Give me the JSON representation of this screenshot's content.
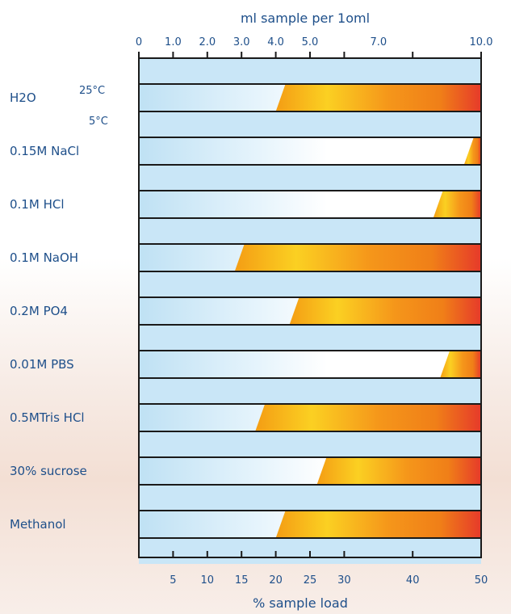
{
  "chart_data": {
    "type": "bar",
    "top_axis": {
      "title": "ml sample per 1oml",
      "ticks": [
        {
          "label": "0",
          "pct": 0
        },
        {
          "label": "1.0",
          "pct": 10
        },
        {
          "label": "2.0",
          "pct": 20
        },
        {
          "label": "3.0",
          "pct": 30
        },
        {
          "label": "4.0",
          "pct": 40
        },
        {
          "label": "5.0",
          "pct": 50
        },
        {
          "label": "7.0",
          "pct": 70
        },
        {
          "label": "10.0",
          "pct": 100
        }
      ],
      "minor_tick_pct": [
        5,
        10,
        15,
        20,
        25,
        30,
        40,
        50
      ]
    },
    "bottom_axis": {
      "title": "% sample load",
      "ticks": [
        5,
        10,
        15,
        20,
        25,
        30,
        40,
        50
      ],
      "range": [
        0,
        50
      ]
    },
    "rows": [
      {
        "label": "H2O",
        "temps": [
          "25°C",
          "5°C"
        ]
      },
      {
        "label": "0.15M NaCl",
        "temps": []
      },
      {
        "label": "0.1M HCl",
        "temps": []
      },
      {
        "label": "0.1M NaOH",
        "temps": []
      },
      {
        "label": "0.2M PO4",
        "temps": []
      },
      {
        "label": "0.01M PBS",
        "temps": []
      },
      {
        "label": "0.5MTris HCl",
        "temps": []
      },
      {
        "label": "30% sucrose",
        "temps": []
      },
      {
        "label": "Methanol",
        "temps": []
      }
    ],
    "series": [
      {
        "name": "25°C",
        "values": [
          20,
          47.5,
          43,
          14,
          22,
          44,
          17,
          26,
          20
        ]
      },
      {
        "name": "5°C",
        "values": [
          0,
          0,
          0,
          0,
          0,
          0,
          0,
          0,
          0
        ]
      }
    ],
    "colors": {
      "band": "#c9e6f7",
      "band_light": "#ffffff",
      "gradient": [
        "#f49d14",
        "#fbd022",
        "#f07f18",
        "#e63a2a"
      ],
      "axis": "#1a1a1a",
      "text": "#1e4f8a"
    }
  }
}
